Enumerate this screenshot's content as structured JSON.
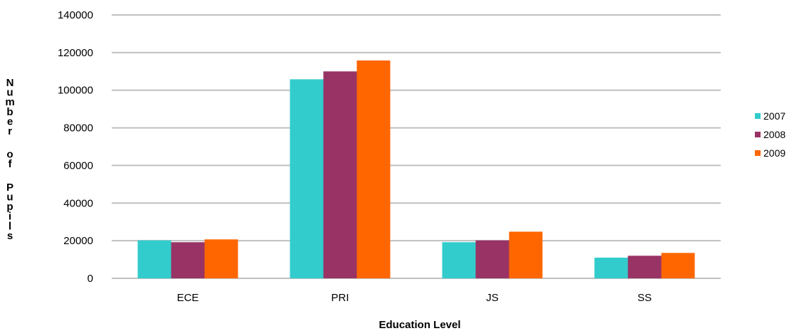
{
  "chart_data": {
    "type": "bar",
    "categories": [
      "ECE",
      "PRI",
      "JS",
      "SS"
    ],
    "series": [
      {
        "name": "2007",
        "values": [
          20200,
          105800,
          19200,
          11000
        ],
        "color": "#33cccc"
      },
      {
        "name": "2008",
        "values": [
          19200,
          110000,
          20200,
          12000
        ],
        "color": "#993366"
      },
      {
        "name": "2009",
        "values": [
          20700,
          115800,
          24800,
          13500
        ],
        "color": "#ff6600"
      }
    ],
    "xlabel": "Education Level",
    "ylabel": "Number of Pupils",
    "ylim": [
      0,
      140000
    ],
    "yticks": [
      "0",
      "20000",
      "40000",
      "60000",
      "80000",
      "100000",
      "120000",
      "140000"
    ],
    "grid": true,
    "legend_position": "right"
  }
}
